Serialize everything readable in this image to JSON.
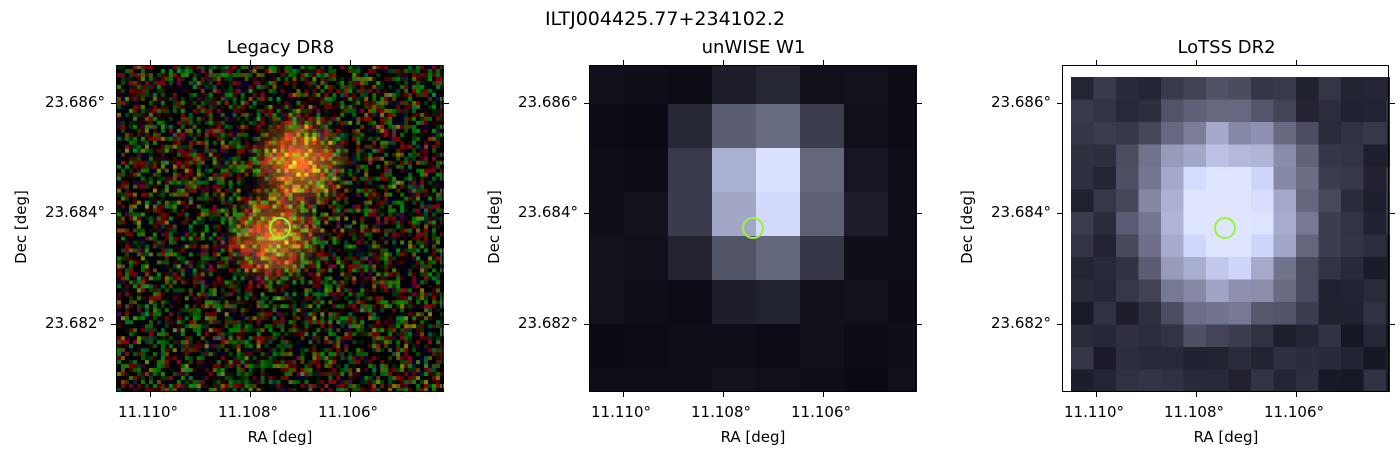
{
  "figure": {
    "title": "ILTJ004425.77+234102.2"
  },
  "panels": [
    {
      "title": "Legacy DR8",
      "xlabel": "RA [deg]",
      "ylabel": "Dec [deg]",
      "xticks": [
        "11.110°",
        "11.108°",
        "11.106°"
      ],
      "yticks": [
        "23.686°",
        "23.684°",
        "23.682°"
      ],
      "marker_color": "#9af23a"
    },
    {
      "title": "unWISE W1",
      "xlabel": "RA [deg]",
      "ylabel": "Dec [deg]",
      "xticks": [
        "11.110°",
        "11.108°",
        "11.106°"
      ],
      "yticks": [
        "23.686°",
        "23.684°",
        "23.682°"
      ],
      "marker_color": "#9af23a"
    },
    {
      "title": "LoTSS DR2",
      "xlabel": "RA [deg]",
      "ylabel": "Dec [deg]",
      "xticks": [
        "11.110°",
        "11.108°",
        "11.106°"
      ],
      "yticks": [
        "23.686°",
        "23.684°",
        "23.682°"
      ],
      "marker_color": "#9af23a"
    }
  ]
}
